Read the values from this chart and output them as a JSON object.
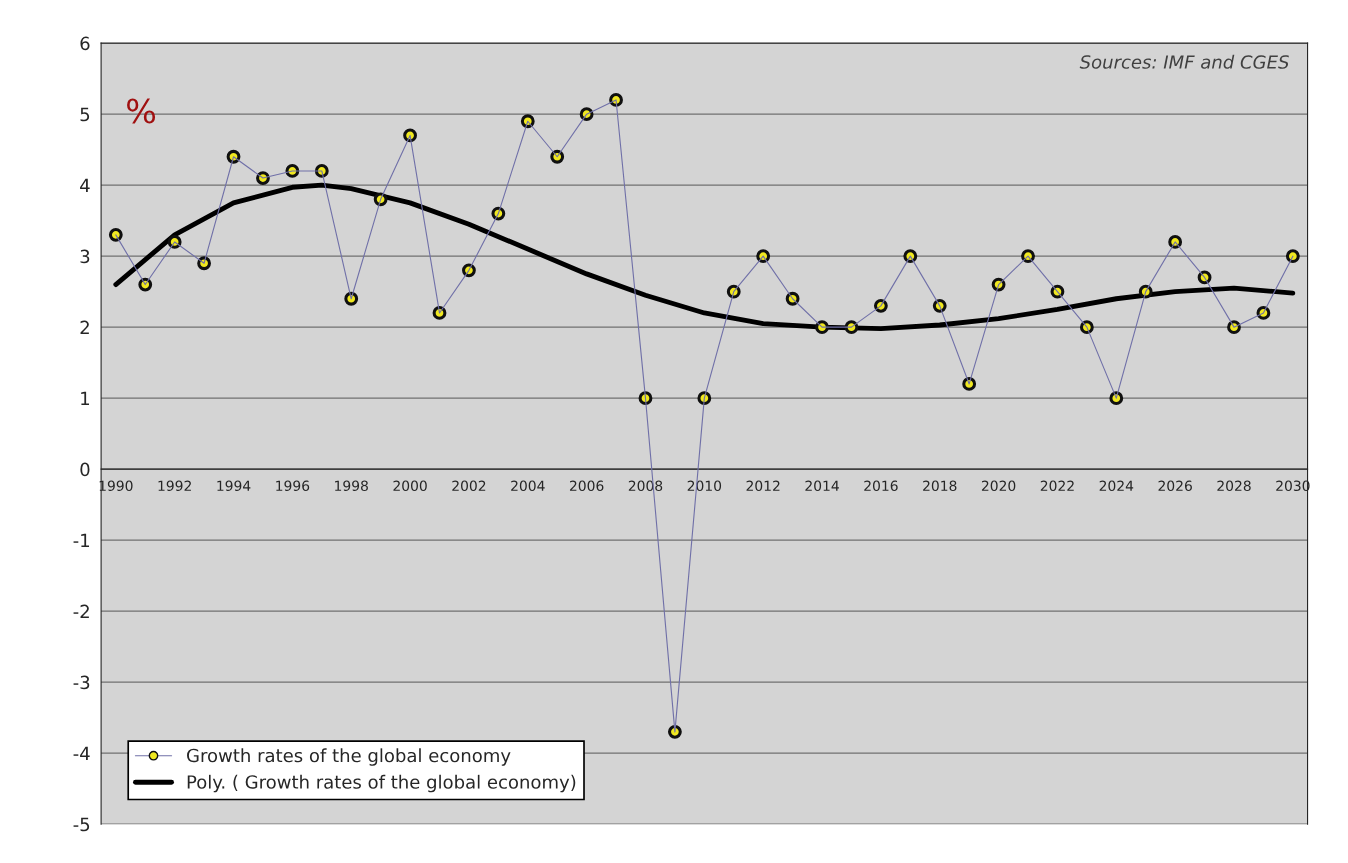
{
  "chart_data": {
    "type": "line",
    "x": [
      1990,
      1991,
      1992,
      1993,
      1994,
      1995,
      1996,
      1997,
      1998,
      1999,
      2000,
      2001,
      2002,
      2003,
      2004,
      2005,
      2006,
      2007,
      2008,
      2009,
      2010,
      2011,
      2012,
      2013,
      2014,
      2015,
      2016,
      2017,
      2018,
      2019,
      2020,
      2021,
      2022,
      2023,
      2024,
      2025,
      2026,
      2027,
      2028,
      2029,
      2030
    ],
    "series": [
      {
        "name": "Growth rates of the global economy",
        "color": "#7070a8",
        "marker": "circle",
        "values": [
          3.3,
          2.6,
          3.2,
          2.9,
          4.4,
          4.1,
          4.2,
          4.2,
          2.4,
          3.8,
          4.7,
          2.2,
          2.8,
          3.6,
          4.9,
          4.4,
          5.0,
          5.2,
          1.0,
          -3.7,
          1.0,
          2.5,
          3.0,
          2.4,
          2.0,
          2.0,
          2.3,
          3.0,
          2.3,
          1.2,
          2.6,
          3.0,
          2.5,
          2.0,
          1.0,
          2.5,
          3.2,
          2.7,
          2.0,
          2.2,
          3.0
        ]
      },
      {
        "name": "Poly. ( Growth rates of the global economy)",
        "color": "#000000",
        "marker": "none",
        "x": [
          1990,
          1992,
          1994,
          1996,
          1997,
          1998,
          2000,
          2002,
          2004,
          2006,
          2008,
          2010,
          2012,
          2014,
          2016,
          2018,
          2020,
          2022,
          2024,
          2026,
          2028,
          2030
        ],
        "values": [
          2.6,
          3.3,
          3.75,
          3.97,
          4.0,
          3.95,
          3.75,
          3.45,
          3.1,
          2.75,
          2.45,
          2.2,
          2.05,
          2.0,
          1.98,
          2.03,
          2.12,
          2.25,
          2.4,
          2.5,
          2.55,
          2.48
        ]
      }
    ],
    "xlim": [
      1989.5,
      2030.5
    ],
    "xticks": [
      1990,
      1992,
      1994,
      1996,
      1998,
      2000,
      2002,
      2004,
      2006,
      2008,
      2010,
      2012,
      2014,
      2016,
      2018,
      2020,
      2022,
      2024,
      2026,
      2028,
      2030
    ],
    "ylim": [
      -5,
      6
    ],
    "yticks": [
      -5,
      -4,
      -3,
      -2,
      -1,
      0,
      1,
      2,
      3,
      4,
      5,
      6
    ],
    "grid": "y",
    "legend": "bottom left",
    "annotations": [
      "%",
      "Sources: IMF and CGES"
    ]
  }
}
